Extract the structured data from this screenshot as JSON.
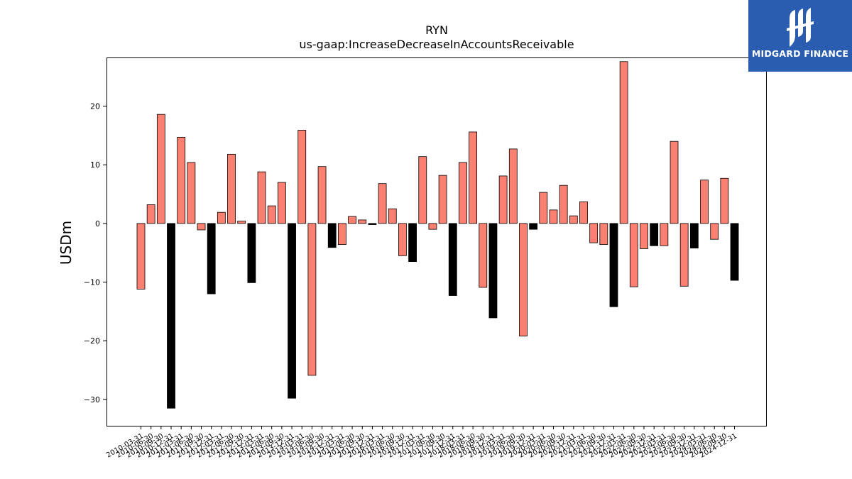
{
  "brand": {
    "name": "MIDGARD FINANCE",
    "color": "#2a5db0"
  },
  "chart_data": {
    "type": "bar",
    "title": "RYN",
    "subtitle": "us-gaap:IncreaseDecreaseInAccountsReceivable",
    "xlabel": "",
    "ylabel": "USDm",
    "ylim": [
      -34.5,
      28.3
    ],
    "yticks": [
      -30,
      -20,
      -10,
      0,
      10,
      20
    ],
    "positive_color": "#fa8072",
    "negative_color": "#000000",
    "categories": [
      "2010-03-31",
      "2010-06-30",
      "2010-09-30",
      "2010-12-31",
      "2011-03-31",
      "2011-06-30",
      "2011-09-30",
      "2011-12-31",
      "2012-03-31",
      "2012-06-30",
      "2012-09-30",
      "2012-12-31",
      "2013-03-31",
      "2013-06-30",
      "2013-09-30",
      "2013-12-31",
      "2014-03-31",
      "2014-06-30",
      "2014-09-30",
      "2014-12-31",
      "2015-03-31",
      "2015-06-30",
      "2015-09-30",
      "2015-12-31",
      "2016-03-31",
      "2016-06-30",
      "2016-09-30",
      "2016-12-31",
      "2017-03-31",
      "2017-06-30",
      "2017-09-30",
      "2017-12-31",
      "2018-03-31",
      "2018-06-30",
      "2018-09-30",
      "2018-12-31",
      "2019-03-31",
      "2019-06-30",
      "2019-09-30",
      "2019-12-31",
      "2020-03-31",
      "2020-06-30",
      "2020-09-30",
      "2020-12-31",
      "2021-03-31",
      "2021-06-30",
      "2021-09-30",
      "2021-12-31",
      "2022-03-31",
      "2022-06-30",
      "2022-09-30",
      "2022-12-31",
      "2023-03-31",
      "2023-06-30",
      "2023-09-30",
      "2023-12-31",
      "2024-03-31",
      "2024-06-30",
      "2024-09-30",
      "2024-12-31"
    ],
    "values": [
      -11.2,
      3.2,
      18.6,
      -31.5,
      14.7,
      10.4,
      -1.1,
      -12.0,
      1.9,
      11.8,
      0.4,
      -10.1,
      8.8,
      3.0,
      7.0,
      -29.8,
      15.9,
      -25.9,
      9.7,
      -4.1,
      -3.6,
      1.2,
      0.6,
      -0.2,
      6.8,
      2.5,
      -5.5,
      -6.5,
      11.4,
      -1.0,
      8.2,
      -12.3,
      10.4,
      15.6,
      -10.9,
      -16.1,
      8.1,
      12.7,
      -19.2,
      -1.0,
      5.3,
      2.3,
      6.5,
      1.3,
      3.7,
      -3.3,
      -3.6,
      -14.2,
      27.6,
      -10.8,
      -4.3,
      -3.8,
      -3.8,
      14.0,
      -10.7,
      -4.2,
      7.4,
      -2.7,
      7.7,
      -9.7
    ],
    "negative_style": [
      false,
      false,
      false,
      true,
      false,
      false,
      false,
      true,
      false,
      false,
      false,
      true,
      false,
      false,
      false,
      true,
      false,
      false,
      false,
      true,
      false,
      false,
      false,
      true,
      false,
      false,
      false,
      true,
      false,
      false,
      false,
      true,
      false,
      false,
      false,
      true,
      false,
      false,
      false,
      true,
      false,
      false,
      false,
      true,
      false,
      false,
      false,
      true,
      false,
      false,
      false,
      true,
      false,
      false,
      false,
      true,
      false,
      false,
      false,
      true
    ]
  }
}
